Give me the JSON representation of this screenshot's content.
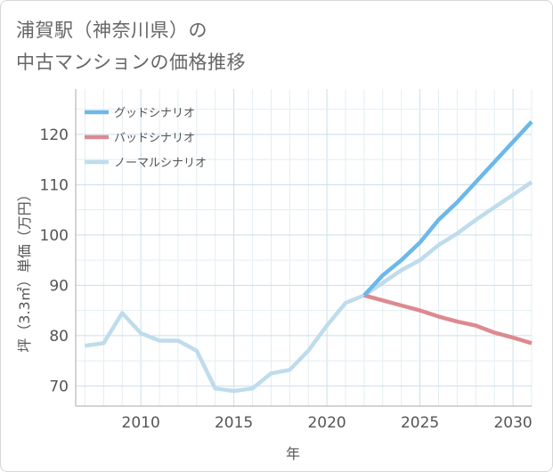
{
  "title_lines": [
    "浦賀駅（神奈川県）の",
    "中古マンションの価格推移"
  ],
  "chart_data": {
    "type": "line",
    "title": "浦賀駅（神奈川県）の中古マンションの価格推移",
    "xlabel": "年",
    "ylabel": "坪（3.3㎡）単価（万円）",
    "xlim": [
      2006.5,
      2031
    ],
    "ylim": [
      66,
      129
    ],
    "x_ticks": [
      2010,
      2015,
      2020,
      2025,
      2030
    ],
    "y_ticks": [
      70,
      80,
      90,
      100,
      110,
      120
    ],
    "grid": true,
    "legend_position": "top-left",
    "series": [
      {
        "name": "グッドシナリオ",
        "color": "#6cb8ea",
        "x": [
          2022,
          2023,
          2024,
          2025,
          2026,
          2027,
          2028,
          2029,
          2030,
          2031
        ],
        "values": [
          88,
          92,
          95,
          98.5,
          103,
          106.5,
          110.5,
          114.5,
          118.5,
          122.5
        ]
      },
      {
        "name": "バッドシナリオ",
        "color": "#dc8a90",
        "x": [
          2022,
          2023,
          2024,
          2025,
          2026,
          2027,
          2028,
          2029,
          2030,
          2031
        ],
        "values": [
          88,
          87,
          86,
          85,
          83.8,
          82.8,
          82,
          80.6,
          79.6,
          78.5
        ]
      },
      {
        "name": "ノーマルシナリオ",
        "color": "#bfdcec",
        "x": [
          2007,
          2008,
          2009,
          2010,
          2011,
          2012,
          2013,
          2014,
          2015,
          2016,
          2017,
          2018,
          2019,
          2020,
          2021,
          2022,
          2023,
          2024,
          2025,
          2026,
          2027,
          2028,
          2029,
          2030,
          2031
        ],
        "values": [
          78,
          78.5,
          84.5,
          80.5,
          79,
          79,
          77,
          69.5,
          69,
          69.5,
          72.5,
          73.2,
          77,
          82,
          86.5,
          88,
          90.5,
          93,
          95,
          98,
          100.3,
          103,
          105.5,
          108,
          110.5
        ]
      }
    ]
  }
}
